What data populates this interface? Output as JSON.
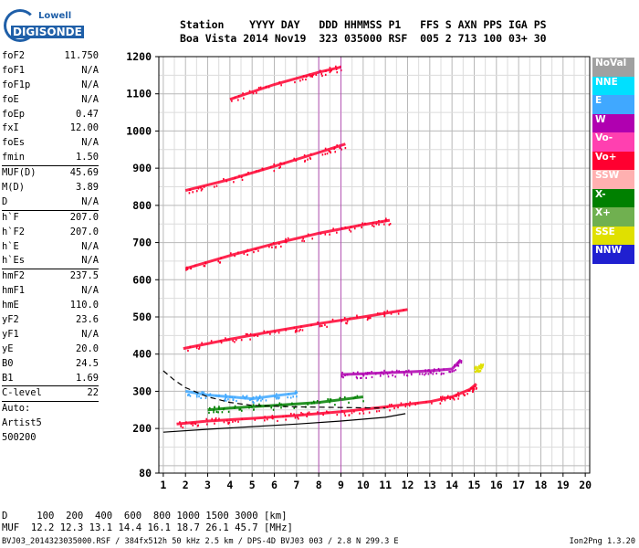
{
  "logo": {
    "brand": "Lowell",
    "name": "DIGISONDE"
  },
  "header": {
    "line1": "Station    YYYY DAY   DDD HHMMSS P1   FFS S AXN PPS IGA PS",
    "line2": "Boa Vista 2014 Nov19  323 035000 RSF  005 2 713 100 03+ 30"
  },
  "params": {
    "group1": [
      {
        "label": "foF2",
        "value": "11.750"
      },
      {
        "label": "foF1",
        "value": "N/A"
      },
      {
        "label": "foF1p",
        "value": "N/A"
      },
      {
        "label": "foE",
        "value": "N/A"
      },
      {
        "label": "foEp",
        "value": "0.47"
      },
      {
        "label": "fxI",
        "value": "12.00"
      },
      {
        "label": "foEs",
        "value": "N/A"
      },
      {
        "label": "fmin",
        "value": "1.50"
      }
    ],
    "group2": [
      {
        "label": "MUF(D)",
        "value": "45.69"
      },
      {
        "label": "M(D)",
        "value": "3.89"
      },
      {
        "label": "D",
        "value": "N/A"
      }
    ],
    "group3": [
      {
        "label": "h`F",
        "value": "207.0"
      },
      {
        "label": "h`F2",
        "value": "207.0"
      },
      {
        "label": "h`E",
        "value": "N/A"
      },
      {
        "label": "h`Es",
        "value": "N/A"
      }
    ],
    "group4": [
      {
        "label": "hmF2",
        "value": "237.5"
      },
      {
        "label": "hmF1",
        "value": "N/A"
      },
      {
        "label": "hmE",
        "value": "110.0"
      },
      {
        "label": "yF2",
        "value": "23.6"
      },
      {
        "label": "yF1",
        "value": "N/A"
      },
      {
        "label": "yE",
        "value": "20.0"
      },
      {
        "label": "B0",
        "value": "24.5"
      },
      {
        "label": "B1",
        "value": "1.69"
      }
    ],
    "group5": [
      {
        "label": "C-level",
        "value": "22"
      }
    ],
    "auto_lines": [
      "Auto:",
      "Artist5",
      "500200"
    ]
  },
  "legend": [
    {
      "label": "NoVal",
      "color": "#a0a0a0"
    },
    {
      "label": "NNE",
      "color": "#00e0ff"
    },
    {
      "label": "E",
      "color": "#40a8ff"
    },
    {
      "label": "W",
      "color": "#b000b0"
    },
    {
      "label": "Vo-",
      "color": "#ff40b0"
    },
    {
      "label": "Vo+",
      "color": "#ff0030"
    },
    {
      "label": "SSW",
      "color": "#ffb0b0"
    },
    {
      "label": "X-",
      "color": "#008000"
    },
    {
      "label": "X+",
      "color": "#70b050"
    },
    {
      "label": "SSE",
      "color": "#e0e000"
    },
    {
      "label": "NNW",
      "color": "#2020d0"
    }
  ],
  "footer": {
    "line1": "D     100  200  400  600  800 1000 1500 3000 [km]",
    "line2": "MUF  12.2 12.3 13.1 14.4 16.1 18.7 26.1 45.7 [MHz]",
    "file": "BVJ03_2014323035000.RSF / 384fx512h 50 kHz 2.5 km / DPS-4D BVJ03 003 / 2.8 N 299.3 E",
    "version": "Ion2Png 1.3.20"
  },
  "chart_data": {
    "type": "scatter",
    "title": "",
    "xlabel": "",
    "ylabel": "",
    "xlim": [
      0.8,
      20.2
    ],
    "ylim": [
      80,
      1200
    ],
    "x_ticks": [
      1,
      2,
      3,
      4,
      5,
      6,
      7,
      8,
      9,
      10,
      11,
      12,
      13,
      14,
      15,
      16,
      17,
      18,
      19,
      20
    ],
    "y_ticks": [
      80,
      200,
      300,
      400,
      500,
      600,
      700,
      800,
      900,
      1000,
      1100,
      1200
    ],
    "grid": true,
    "traces": [
      {
        "name": "F2 O-trace",
        "color": "#ff0030",
        "points": [
          [
            1.6,
            212
          ],
          [
            3,
            220
          ],
          [
            5,
            227
          ],
          [
            7,
            235
          ],
          [
            9,
            245
          ],
          [
            11,
            258
          ],
          [
            13,
            272
          ],
          [
            14,
            285
          ],
          [
            14.8,
            305
          ],
          [
            15.1,
            320
          ]
        ]
      },
      {
        "name": "2F multiple",
        "color": "#ff0030",
        "points": [
          [
            1.9,
            415
          ],
          [
            4,
            440
          ],
          [
            6,
            462
          ],
          [
            8,
            482
          ],
          [
            10,
            500
          ],
          [
            12,
            520
          ]
        ]
      },
      {
        "name": "3F multiple",
        "color": "#ff0030",
        "points": [
          [
            2,
            630
          ],
          [
            4,
            665
          ],
          [
            6,
            697
          ],
          [
            8,
            725
          ],
          [
            10,
            748
          ],
          [
            11.2,
            760
          ]
        ]
      },
      {
        "name": "4F multiple",
        "color": "#ff0030",
        "points": [
          [
            2,
            840
          ],
          [
            4,
            870
          ],
          [
            6,
            905
          ],
          [
            8,
            942
          ],
          [
            9.2,
            965
          ]
        ]
      },
      {
        "name": "5F multiple",
        "color": "#ff0030",
        "points": [
          [
            4,
            1085
          ],
          [
            6,
            1125
          ],
          [
            8,
            1158
          ],
          [
            9,
            1172
          ]
        ]
      },
      {
        "name": "X trace",
        "color": "#008000",
        "points": [
          [
            3,
            250
          ],
          [
            4,
            255
          ],
          [
            6,
            262
          ],
          [
            8,
            270
          ],
          [
            10,
            285
          ]
        ]
      },
      {
        "name": "Oblique W echoes",
        "color": "#b000b0",
        "points": [
          [
            9,
            345
          ],
          [
            10,
            347
          ],
          [
            11,
            350
          ],
          [
            12,
            352
          ],
          [
            13,
            355
          ],
          [
            14,
            360
          ],
          [
            14.4,
            385
          ]
        ]
      },
      {
        "name": "NNE/E echoes",
        "color": "#40a8ff",
        "points": [
          [
            2,
            300
          ],
          [
            3,
            290
          ],
          [
            4,
            285
          ],
          [
            5,
            280
          ],
          [
            6,
            288
          ],
          [
            7,
            295
          ]
        ]
      },
      {
        "name": "SSE echoes",
        "color": "#e0e000",
        "points": [
          [
            15,
            360
          ],
          [
            15.2,
            365
          ],
          [
            15.4,
            370
          ]
        ]
      },
      {
        "name": "Model profile",
        "color": "#000000",
        "points": [
          [
            1,
            190
          ],
          [
            3,
            198
          ],
          [
            5,
            205
          ],
          [
            7,
            212
          ],
          [
            9,
            220
          ],
          [
            11,
            230
          ],
          [
            11.9,
            240
          ]
        ]
      },
      {
        "name": "Model profile (dashed)",
        "color": "#000000",
        "points": [
          [
            1,
            355
          ],
          [
            1.5,
            330
          ],
          [
            2,
            310
          ],
          [
            3,
            285
          ],
          [
            4,
            270
          ],
          [
            5,
            262
          ],
          [
            7,
            258
          ],
          [
            11,
            255
          ]
        ]
      }
    ]
  }
}
